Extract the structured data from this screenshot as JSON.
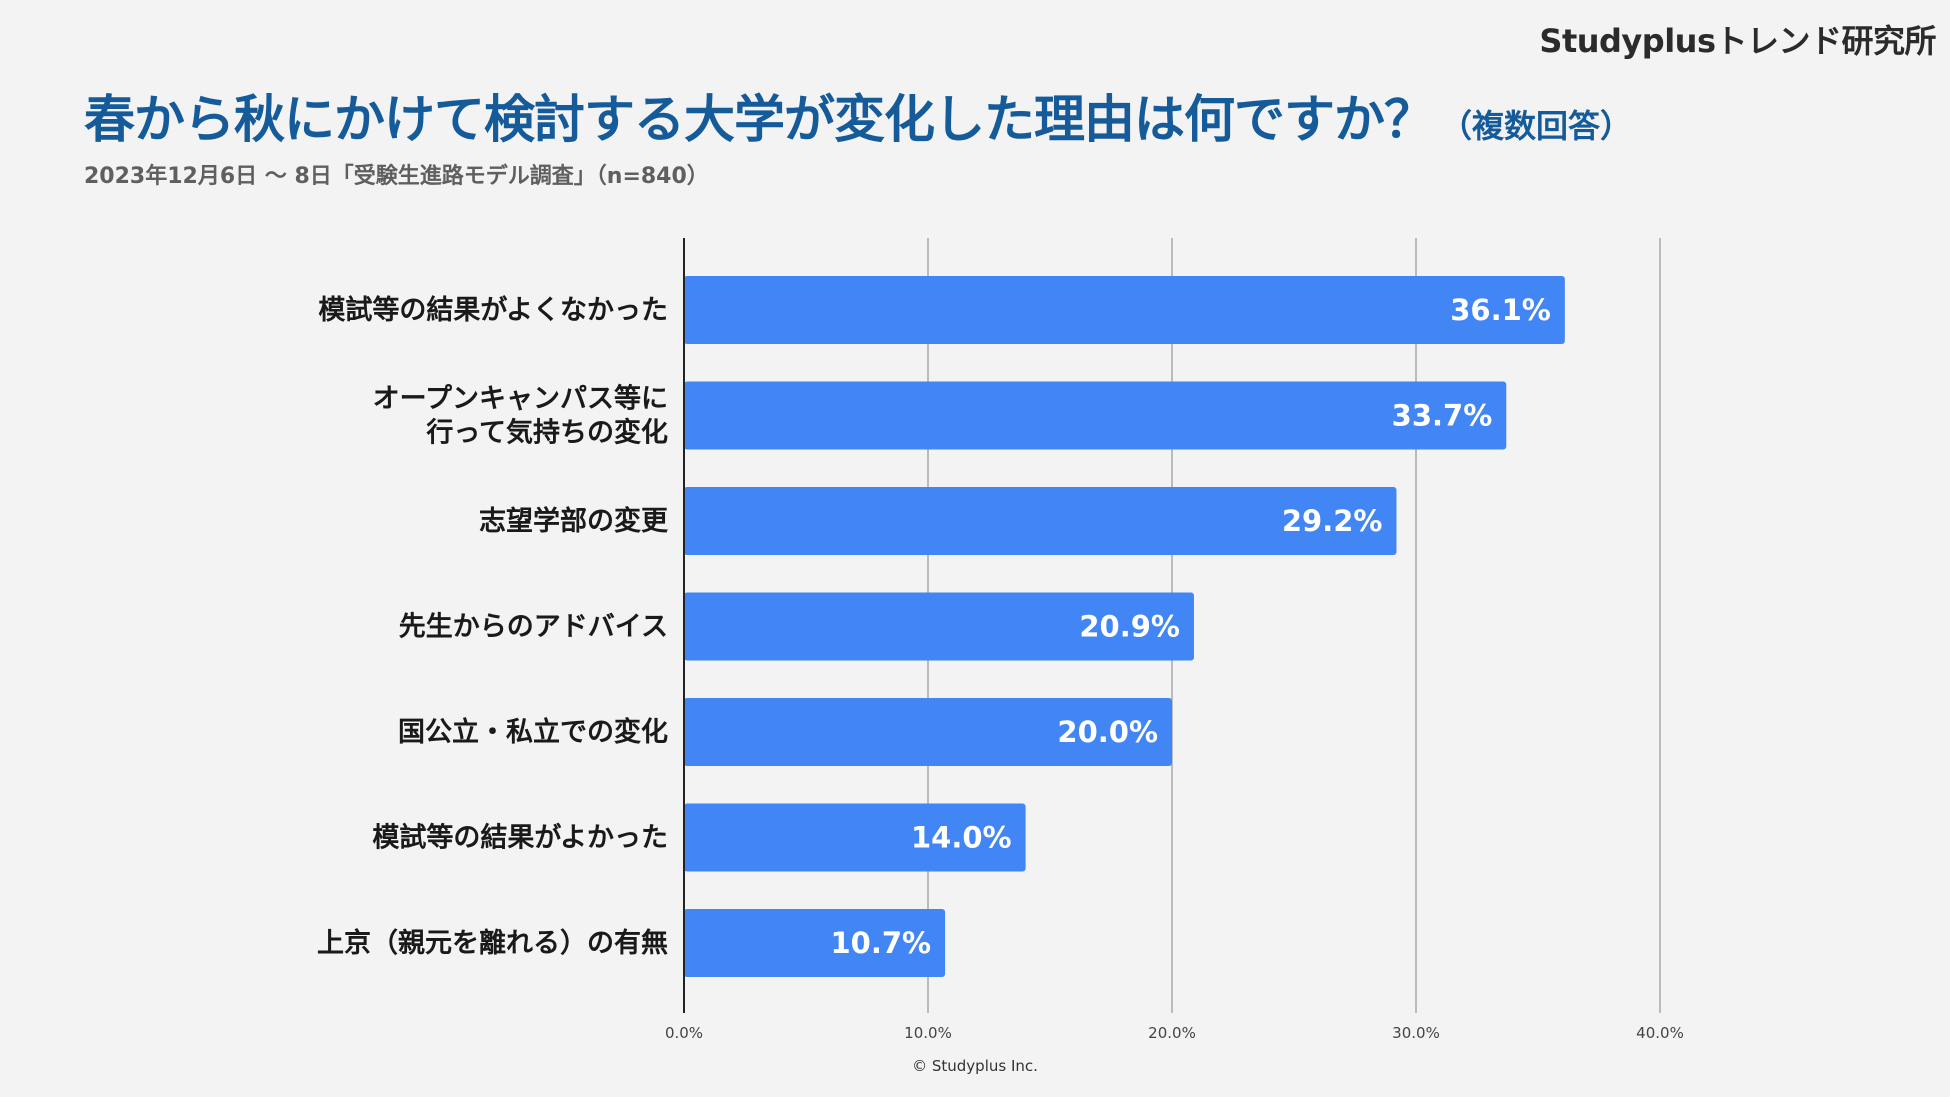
{
  "header": {
    "brand": "Studyplusトレンド研究所",
    "title": "春から秋にかけて検討する大学が変化した理由は何ですか？",
    "title_note": "（複数回答）",
    "subtitle": "2023年12月6日 〜 8日「受験生進路モデル調査」（n=840）"
  },
  "footer": {
    "copyright": "© Studyplus Inc."
  },
  "colors": {
    "bar": "#4285f4",
    "title": "#155b9a",
    "grid": "#bbbbbb",
    "axis": "#222222"
  },
  "chart_data": {
    "type": "bar",
    "orientation": "horizontal",
    "categories": [
      [
        "模試等の結果がよくなかった"
      ],
      [
        "オープンキャンパス等に",
        "行って気持ちの変化"
      ],
      [
        "志望学部の変更"
      ],
      [
        "先生からのアドバイス"
      ],
      [
        "国公立・私立での変化"
      ],
      [
        "模試等の結果がよかった"
      ],
      [
        "上京（親元を離れる）の有無"
      ]
    ],
    "values": [
      36.1,
      33.7,
      29.2,
      20.9,
      20.0,
      14.0,
      10.7
    ],
    "value_labels": [
      "36.1%",
      "33.7%",
      "29.2%",
      "20.9%",
      "20.0%",
      "14.0%",
      "10.7%"
    ],
    "xlim": [
      0,
      40
    ],
    "ticks": [
      0,
      10,
      20,
      30,
      40
    ],
    "tick_labels": [
      "0.0%",
      "10.0%",
      "20.0%",
      "30.0%",
      "40.0%"
    ],
    "title": "春から秋にかけて検討する大学が変化した理由は何ですか？",
    "xlabel": "",
    "ylabel": "",
    "grid": true,
    "legend": "none"
  }
}
